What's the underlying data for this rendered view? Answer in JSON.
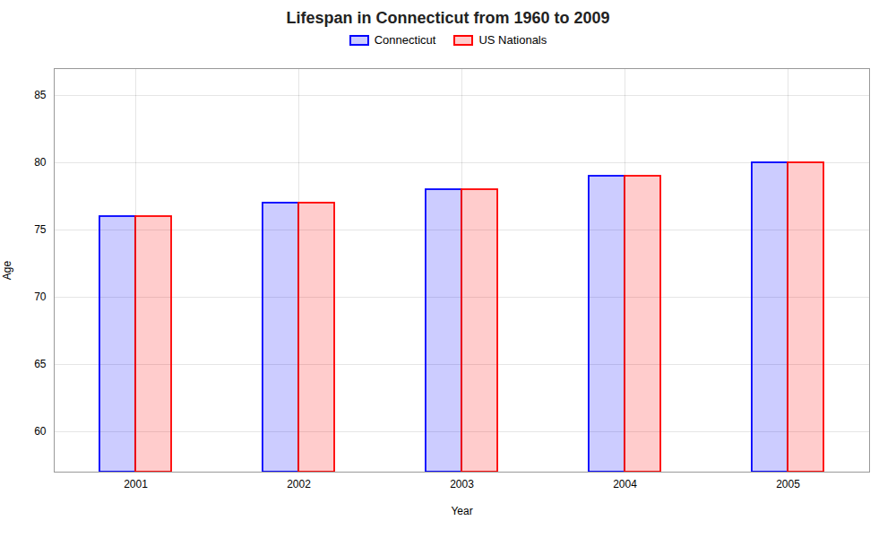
{
  "chart_data": {
    "type": "bar",
    "title": "Lifespan in Connecticut from 1960 to 2009",
    "xlabel": "Year",
    "ylabel": "Age",
    "categories": [
      "2001",
      "2002",
      "2003",
      "2004",
      "2005"
    ],
    "series": [
      {
        "name": "Connecticut",
        "color": "#0000ff",
        "values": [
          76,
          77,
          78,
          79,
          80
        ]
      },
      {
        "name": "US Nationals",
        "color": "#ff0000",
        "values": [
          76,
          77,
          78,
          79,
          80
        ]
      }
    ],
    "ylim": [
      57,
      87
    ],
    "yticks": [
      60,
      65,
      70,
      75,
      80,
      85
    ],
    "grid": true,
    "legend": "top"
  }
}
